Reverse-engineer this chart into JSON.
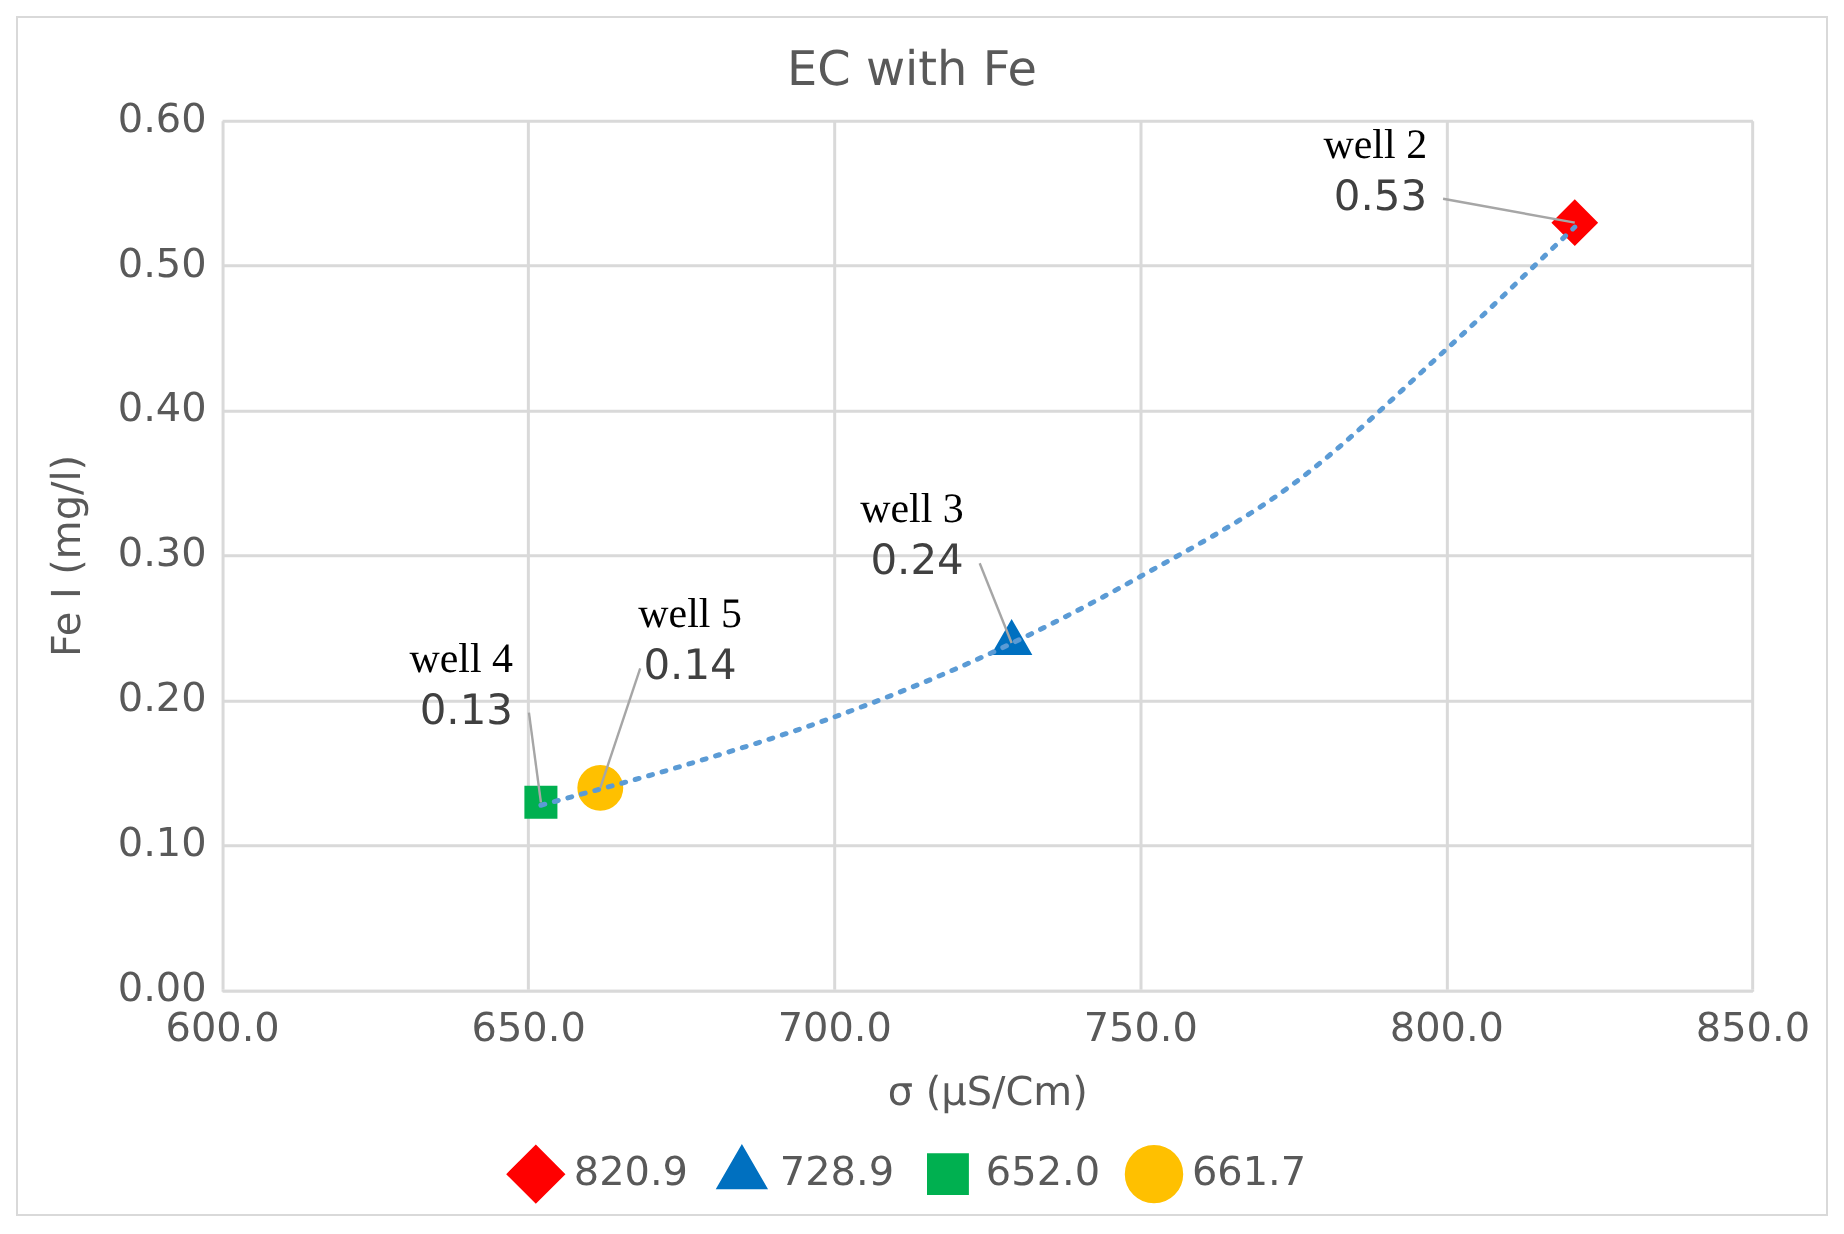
{
  "chart_data": {
    "type": "scatter",
    "title": "EC with Fe",
    "xlabel": "σ (μS/Cm)",
    "ylabel": "Fe I (mg/l)",
    "xlim": [
      600,
      850
    ],
    "xticks": [
      {
        "value": 600,
        "label": "600.0"
      },
      {
        "value": 650,
        "label": "650.0"
      },
      {
        "value": 700,
        "label": "700.0"
      },
      {
        "value": 750,
        "label": "750.0"
      },
      {
        "value": 800,
        "label": "800.0"
      },
      {
        "value": 850,
        "label": "850.0"
      }
    ],
    "ylim": [
      0,
      0.6
    ],
    "yticks": [
      {
        "value": 0,
        "label": "0.00"
      },
      {
        "value": 0.1,
        "label": "0.10"
      },
      {
        "value": 0.2,
        "label": "0.20"
      },
      {
        "value": 0.3,
        "label": "0.30"
      },
      {
        "value": 0.4,
        "label": "0.40"
      },
      {
        "value": 0.5,
        "label": "0.50"
      },
      {
        "value": 0.6,
        "label": "0.60"
      }
    ],
    "grid": true,
    "legend": "bottom",
    "series": [
      {
        "name": "820.9",
        "color": "#ff0000",
        "marker": "diamond",
        "x": [
          820.9
        ],
        "values": [
          0.53
        ],
        "value_labels": [
          "0.53"
        ]
      },
      {
        "name": "728.9",
        "color": "#0070c0",
        "marker": "triangle",
        "x": [
          728.9
        ],
        "values": [
          0.24
        ],
        "value_labels": [
          "0.24"
        ]
      },
      {
        "name": "652.0",
        "color": "#00b050",
        "marker": "square",
        "x": [
          652.0
        ],
        "values": [
          0.13
        ],
        "value_labels": [
          "0.13"
        ]
      },
      {
        "name": "661.7",
        "color": "#ffc000",
        "marker": "circle",
        "x": [
          661.7
        ],
        "values": [
          0.14
        ],
        "value_labels": [
          "0.14"
        ]
      },
      {
        "type": "line",
        "color": "#5b9bd5",
        "line_style": "dotted",
        "marker": "none",
        "x": [
          652,
          675,
          700,
          725,
          750,
          775,
          800,
          820.9
        ],
        "values": [
          0.128,
          0.155,
          0.189,
          0.232,
          0.286,
          0.35,
          0.443,
          0.527
        ]
      }
    ],
    "annotations": [
      {
        "text": "well 2",
        "x": 820.9,
        "y": 0.53
      },
      {
        "text": "well 3",
        "x": 728.9,
        "y": 0.24
      },
      {
        "text": "well 4",
        "x": 652.0,
        "y": 0.13
      },
      {
        "text": "well 5",
        "x": 661.7,
        "y": 0.14
      }
    ]
  }
}
